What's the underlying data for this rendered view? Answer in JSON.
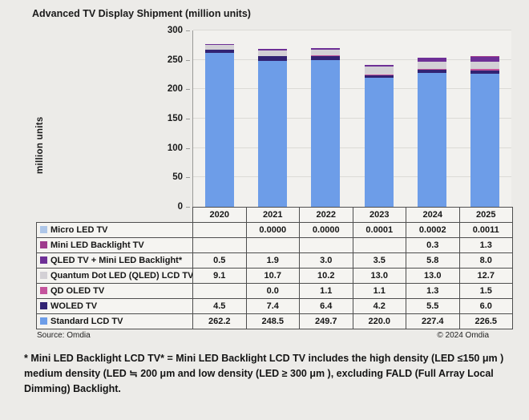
{
  "title": "Advanced TV Display Shipment (million units)",
  "y_axis": {
    "label": "million units",
    "ticks": [
      "300",
      "250",
      "200",
      "150",
      "100",
      "50",
      "0"
    ]
  },
  "years": [
    "2020",
    "2021",
    "2022",
    "2023",
    "2024",
    "2025"
  ],
  "source": "Source: Omdia",
  "copyright": "© 2024 Omdia",
  "footnote": "* Mini LED Backlight LCD TV* = Mini LED Backlight LCD TV includes the high density (LED ≤150 μm ) medium density (LED ≒ 200 μm and low density (LED ≥ 300 μm ), excluding FALD (Full Array Local Dimming) Backlight.",
  "chart_data": {
    "type": "bar",
    "stacked": true,
    "title": "Advanced TV Display Shipment (million units)",
    "ylabel": "million units",
    "ylim": [
      0,
      300
    ],
    "ytick_interval": 50,
    "grid": true,
    "legend_position": "table-below-chart",
    "categories": [
      "2020",
      "2021",
      "2022",
      "2023",
      "2024",
      "2025"
    ],
    "stack_order_bottom_to_top": [
      "Standard LCD TV",
      "WOLED TV",
      "QD OLED TV",
      "Quantum Dot LED (QLED) LCD TV",
      "QLED TV + Mini LED Backlight*",
      "Mini LED Backlight TV",
      "Micro LED TV"
    ],
    "series": [
      {
        "name": "Micro LED TV",
        "color": "#AEC6E8",
        "values": [
          0,
          0.0,
          0.0,
          0.0001,
          0.0002,
          0.0011
        ],
        "display": [
          "",
          "0.0000",
          "0.0000",
          "0.0001",
          "0.0002",
          "0.0011"
        ]
      },
      {
        "name": "Mini LED Backlight TV",
        "color": "#9E3A8C",
        "values": [
          0,
          0,
          0,
          0,
          0.3,
          1.3
        ],
        "display": [
          "",
          "",
          "",
          "",
          "0.3",
          "1.3"
        ]
      },
      {
        "name": "QLED TV + Mini LED Backlight*",
        "color": "#6E3096",
        "values": [
          0.5,
          1.9,
          3.0,
          3.5,
          5.8,
          8.0
        ],
        "display": [
          "0.5",
          "1.9",
          "3.0",
          "3.5",
          "5.8",
          "8.0"
        ]
      },
      {
        "name": "Quantum Dot LED (QLED) LCD TV",
        "color": "#D3D0D5",
        "values": [
          9.1,
          10.7,
          10.2,
          13.0,
          13.0,
          12.7
        ],
        "display": [
          "9.1",
          "10.7",
          "10.2",
          "13.0",
          "13.0",
          "12.7"
        ]
      },
      {
        "name": "QD OLED TV",
        "color": "#C4539C",
        "values": [
          0,
          0.0,
          1.1,
          1.1,
          1.3,
          1.5
        ],
        "display": [
          "",
          "0.0",
          "1.1",
          "1.1",
          "1.3",
          "1.5"
        ]
      },
      {
        "name": "WOLED TV",
        "color": "#322373",
        "values": [
          4.5,
          7.4,
          6.4,
          4.2,
          5.5,
          6.0
        ],
        "display": [
          "4.5",
          "7.4",
          "6.4",
          "4.2",
          "5.5",
          "6.0"
        ]
      },
      {
        "name": "Standard LCD TV",
        "color": "#6D9DE8",
        "values": [
          262.2,
          248.5,
          249.7,
          220.0,
          227.4,
          226.5
        ],
        "display": [
          "262.2",
          "248.5",
          "249.7",
          "220.0",
          "227.4",
          "226.5"
        ]
      }
    ]
  }
}
